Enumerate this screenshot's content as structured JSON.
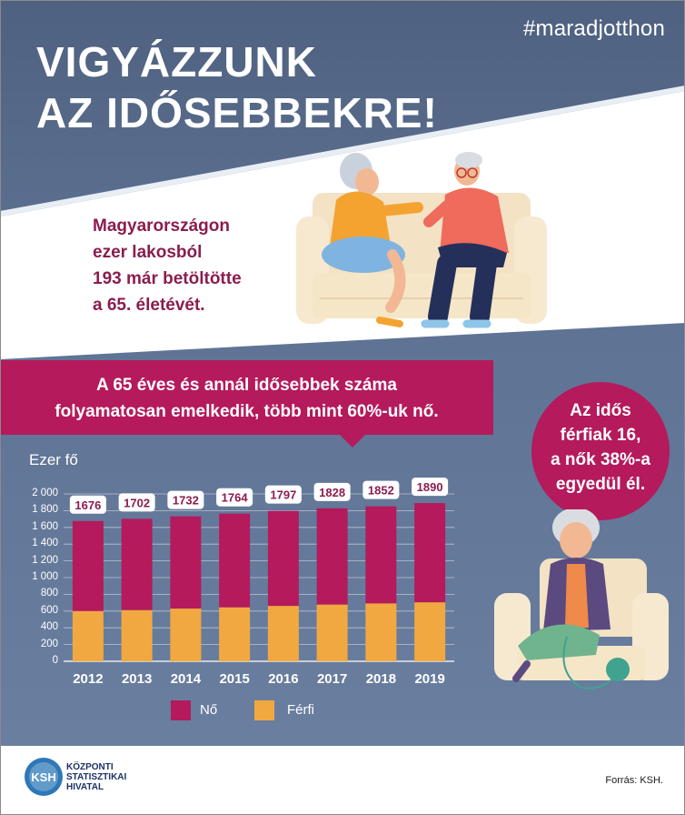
{
  "header": {
    "hashtag": "#maradjotthon",
    "title_line1": "VIGYÁZZUNK",
    "title_line2": "AZ IDŐSEBBEKRE!"
  },
  "fact": {
    "line1": "Magyarországon",
    "line2": "ezer lakosból",
    "line3": "193 már betöltötte",
    "line4": "a 65. életévét."
  },
  "banner": {
    "line1": "A 65 éves és annál idősebbek száma",
    "line2": "folyamatosan emelkedik, több mint 60%-uk nő."
  },
  "bubble": {
    "line1": "Az idős",
    "line2": "férfiak 16,",
    "line3": "a nők 38%-a",
    "line4": "egyedül él."
  },
  "footer": {
    "org_line1": "KÖZPONTI",
    "org_line2": "STATISZTIKAI",
    "org_line3": "HIVATAL",
    "logo_text": "KSH",
    "source": "Forrás: KSH."
  },
  "colors": {
    "female": "#b41a5c",
    "male": "#f2a840",
    "background": "#5d7192",
    "title_text": "#ffffff",
    "fact_text": "#8a1d4f"
  },
  "chart_data": {
    "type": "bar",
    "stacked": true,
    "ylabel": "Ezer fő",
    "ylim": [
      0,
      2000
    ],
    "yticks": [
      0,
      200,
      400,
      600,
      800,
      1000,
      1200,
      1400,
      1600,
      1800,
      2000
    ],
    "ytick_labels": [
      "0",
      "200",
      "400",
      "600",
      "800",
      "1 000",
      "1 200",
      "1 400",
      "1 600",
      "1 800",
      "2 000"
    ],
    "categories": [
      "2012",
      "2013",
      "2014",
      "2015",
      "2016",
      "2017",
      "2018",
      "2019"
    ],
    "totals": [
      1676,
      1702,
      1732,
      1764,
      1797,
      1828,
      1852,
      1890
    ],
    "series": [
      {
        "name": "Férfi",
        "values": [
          600,
          612,
          630,
          645,
          662,
          678,
          692,
          705
        ]
      },
      {
        "name": "Nő",
        "values": [
          1076,
          1090,
          1102,
          1119,
          1135,
          1150,
          1160,
          1185
        ]
      }
    ],
    "legend": [
      "Nő",
      "Férfi"
    ],
    "legend_position": "bottom",
    "grid": true
  }
}
